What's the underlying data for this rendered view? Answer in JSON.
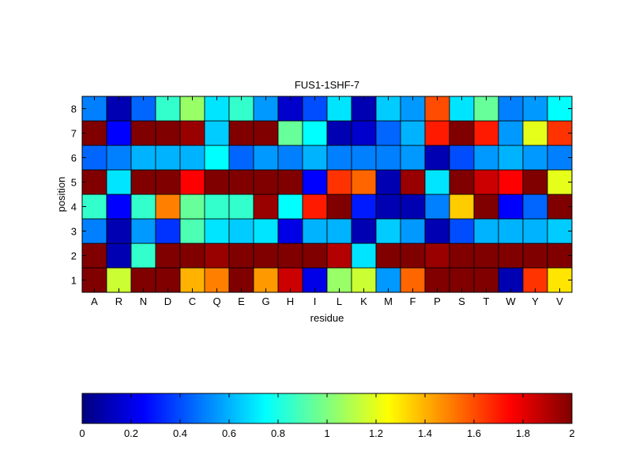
{
  "chart_data": {
    "type": "heatmap",
    "title": "FUS1-1SHF-7",
    "xlabel": "residue",
    "ylabel": "position",
    "x_categories": [
      "A",
      "R",
      "N",
      "D",
      "C",
      "Q",
      "E",
      "G",
      "H",
      "I",
      "L",
      "K",
      "M",
      "F",
      "P",
      "S",
      "T",
      "W",
      "Y",
      "V"
    ],
    "y_categories": [
      "1",
      "2",
      "3",
      "4",
      "5",
      "6",
      "7",
      "8"
    ],
    "colormap": "jet",
    "clim": [
      0,
      2
    ],
    "colorbar": {
      "orientation": "horizontal",
      "placement": "bottom",
      "ticks": [
        0,
        0.2,
        0.4,
        0.6,
        0.8,
        1,
        1.2,
        1.4,
        1.6,
        1.8,
        2
      ],
      "tick_labels": [
        "0",
        "0.2",
        "0.4",
        "0.6",
        "0.8",
        "1",
        "1.2",
        "1.4",
        "1.6",
        "1.8",
        "2"
      ]
    },
    "values": [
      [
        2.0,
        1.15,
        2.0,
        2.0,
        1.4,
        1.5,
        2.0,
        1.45,
        1.85,
        0.2,
        1.05,
        1.15,
        0.55,
        1.55,
        2.0,
        2.0,
        2.0,
        0.1,
        1.65,
        1.3
      ],
      [
        2.0,
        0.1,
        0.85,
        2.0,
        2.0,
        1.95,
        2.0,
        2.0,
        2.0,
        2.0,
        1.9,
        0.7,
        2.0,
        2.0,
        1.95,
        2.0,
        2.0,
        2.0,
        2.0,
        2.0
      ],
      [
        0.5,
        0.1,
        0.55,
        0.35,
        0.9,
        0.7,
        0.65,
        0.7,
        0.2,
        0.6,
        0.6,
        0.1,
        0.65,
        0.55,
        0.1,
        0.4,
        0.6,
        0.6,
        0.6,
        0.65
      ],
      [
        0.85,
        0.25,
        0.85,
        1.5,
        0.95,
        0.85,
        0.85,
        1.95,
        0.75,
        1.7,
        2.0,
        0.3,
        0.1,
        0.1,
        0.5,
        1.35,
        2.0,
        0.25,
        0.45,
        2.0
      ],
      [
        2.0,
        0.7,
        2.0,
        2.0,
        1.75,
        2.0,
        2.0,
        2.0,
        2.0,
        0.25,
        1.65,
        1.55,
        0.1,
        1.95,
        0.7,
        2.0,
        1.85,
        1.75,
        2.0,
        1.2
      ],
      [
        0.45,
        0.5,
        0.6,
        0.6,
        0.6,
        0.75,
        0.45,
        0.55,
        0.5,
        0.6,
        0.5,
        0.5,
        0.5,
        0.55,
        0.1,
        0.4,
        0.55,
        0.6,
        0.55,
        0.5
      ],
      [
        2.0,
        0.25,
        2.0,
        2.0,
        1.95,
        0.65,
        2.0,
        2.0,
        0.95,
        0.75,
        0.1,
        0.15,
        0.45,
        0.6,
        1.7,
        2.0,
        1.7,
        0.55,
        1.2,
        1.65
      ],
      [
        0.5,
        0.1,
        0.45,
        0.85,
        1.05,
        0.7,
        0.85,
        0.55,
        0.15,
        0.4,
        0.7,
        0.1,
        0.65,
        0.55,
        1.6,
        0.7,
        0.95,
        0.5,
        0.55,
        0.75
      ]
    ]
  }
}
